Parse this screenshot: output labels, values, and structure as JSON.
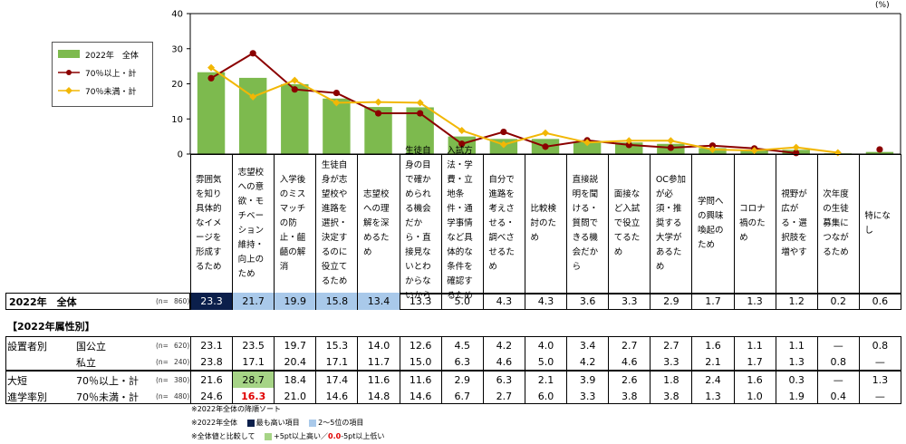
{
  "chart_data": {
    "type": "bar+line",
    "title": "",
    "unit_label": "(%)",
    "ylim": [
      0,
      40
    ],
    "yticks": [
      0,
      10,
      20,
      30,
      40
    ],
    "grid": false,
    "legend_position": "top-left",
    "categories": [
      "雰囲気を知り具体的なイメージを形成するため",
      "志望校への意欲・モチベーション維持・向上のため",
      "入学後のミスマッチの防止・齟齬の解消",
      "生徒自身が志望校や進路を選択・決定するのに役立てるため",
      "志望校への理解を深めるため",
      "生徒自身の目で確かめられる機会だから・直接見ないとわからないから",
      "入試方法・学費・立地条件・通学事情など具体的な条件を確認するため",
      "自分で進路を考えさせる・調べさせるため",
      "比較検討のため",
      "直接説明を聞ける・質問できる機会だから",
      "面接など入試で役立てるため",
      "OC参加が必須・推奨する大学があるため",
      "学問への興味喚起のため",
      "コロナ禍のため",
      "視野が広がる・選択肢を増やす",
      "次年度の生徒募集につながるため",
      "特になし"
    ],
    "series": [
      {
        "name": "2022年　全体",
        "type": "bar",
        "color": "#7dba4e",
        "values": [
          23.3,
          21.7,
          19.9,
          15.8,
          13.4,
          13.3,
          5.0,
          4.3,
          4.3,
          3.6,
          3.3,
          2.9,
          1.7,
          1.3,
          1.2,
          0.2,
          0.6
        ]
      },
      {
        "name": "70％以上・計",
        "type": "line",
        "color": "#8b0000",
        "values": [
          21.6,
          28.7,
          18.4,
          17.4,
          11.6,
          11.6,
          2.9,
          6.3,
          2.1,
          3.9,
          2.6,
          1.8,
          2.4,
          1.6,
          0.3,
          null,
          1.3
        ]
      },
      {
        "name": "70％未満・計",
        "type": "line",
        "color": "#f2b705",
        "values": [
          24.6,
          16.3,
          21.0,
          14.6,
          14.8,
          14.6,
          6.7,
          2.7,
          6.0,
          3.3,
          3.8,
          3.8,
          1.3,
          1.0,
          1.9,
          0.4,
          null
        ]
      }
    ]
  },
  "table": {
    "total_row": {
      "label": "2022年　全体",
      "n_prefix": "(n=",
      "n_value": "860)",
      "values": [
        "23.3",
        "21.7",
        "19.9",
        "15.8",
        "13.4",
        "13.3",
        "5.0",
        "4.3",
        "4.3",
        "3.6",
        "3.3",
        "2.9",
        "1.7",
        "1.3",
        "1.2",
        "0.2",
        "0.6"
      ],
      "highlights": [
        "dark",
        "light",
        "light",
        "light",
        "light",
        "",
        "",
        "",
        "",
        "",
        "",
        "",
        "",
        "",
        "",
        "",
        ""
      ]
    },
    "section_title": "【2022年属性別】",
    "group_labels": {
      "setter": "設置者別",
      "daitan_1": "大短",
      "daitan_2": "進学率別"
    },
    "rows": [
      {
        "label": "国公立",
        "n_prefix": "(n=",
        "n_value": "620)",
        "values": [
          "23.1",
          "23.5",
          "19.7",
          "15.3",
          "14.0",
          "12.6",
          "4.5",
          "4.2",
          "4.0",
          "3.4",
          "2.7",
          "2.7",
          "1.6",
          "1.1",
          "1.1",
          "—",
          "0.8"
        ],
        "marks": [
          "",
          "",
          "",
          "",
          "",
          "",
          "",
          "",
          "",
          "",
          "",
          "",
          "",
          "",
          "",
          "",
          ""
        ]
      },
      {
        "label": "私立",
        "n_prefix": "(n=",
        "n_value": "240)",
        "values": [
          "23.8",
          "17.1",
          "20.4",
          "17.1",
          "11.7",
          "15.0",
          "6.3",
          "4.6",
          "5.0",
          "4.2",
          "4.6",
          "3.3",
          "2.1",
          "1.7",
          "1.3",
          "0.8",
          "—"
        ],
        "marks": [
          "",
          "",
          "",
          "",
          "",
          "",
          "",
          "",
          "",
          "",
          "",
          "",
          "",
          "",
          "",
          "",
          ""
        ]
      },
      {
        "label": "70％以上・計",
        "n_prefix": "(n=",
        "n_value": "380)",
        "values": [
          "21.6",
          "28.7",
          "18.4",
          "17.4",
          "11.6",
          "11.6",
          "2.9",
          "6.3",
          "2.1",
          "3.9",
          "2.6",
          "1.8",
          "2.4",
          "1.6",
          "0.3",
          "—",
          "1.3"
        ],
        "marks": [
          "",
          "high",
          "",
          "",
          "",
          "",
          "",
          "",
          "",
          "",
          "",
          "",
          "",
          "",
          "",
          "",
          ""
        ]
      },
      {
        "label": "70％未満・計",
        "n_prefix": "(n=",
        "n_value": "480)",
        "values": [
          "24.6",
          "16.3",
          "21.0",
          "14.6",
          "14.8",
          "14.6",
          "6.7",
          "2.7",
          "6.0",
          "3.3",
          "3.8",
          "3.8",
          "1.3",
          "1.0",
          "1.9",
          "0.4",
          "—"
        ],
        "marks": [
          "",
          "low",
          "",
          "",
          "",
          "",
          "",
          "",
          "",
          "",
          "",
          "",
          "",
          "",
          "",
          "",
          ""
        ]
      }
    ]
  },
  "notes": {
    "sort": "※2022年全体の降順ソート",
    "n1_prefix": "※2022年全体",
    "n1_dark": "最も高い項目",
    "n1_light": "2～5位の項目",
    "n2_prefix": "※全体値と比較して",
    "n2_high": "+5pt以上高い",
    "n2_sep": "／",
    "n2_low_num": "0.0",
    "n2_low_text": "-5pt以上低い"
  },
  "colors": {
    "bar": "#7dba4e",
    "line_high": "#8b0000",
    "line_low": "#f2b705",
    "top1": "#0b1f4b",
    "top2_5": "#a9c9ea",
    "high": "#a6d486",
    "low": "#e00000"
  }
}
